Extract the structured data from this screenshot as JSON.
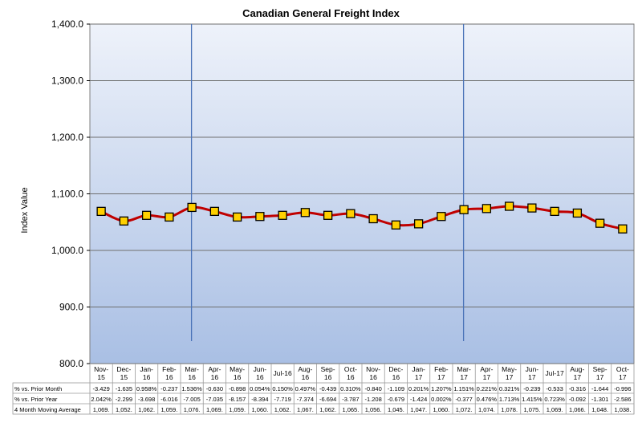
{
  "chart_data": {
    "type": "line",
    "title": "Canadian General Freight Index",
    "ylabel": "Index Value",
    "ylim": [
      800,
      1400
    ],
    "yticks": [
      "800.0",
      "900.0",
      "1,000.0",
      "1,100.0",
      "1,200.0",
      "1,300.0",
      "1,400.0"
    ],
    "ytick_values": [
      800,
      900,
      1000,
      1100,
      1200,
      1300,
      1400
    ],
    "categories": [
      [
        "Nov-",
        "15"
      ],
      [
        "Dec-",
        "15"
      ],
      [
        "Jan-",
        "16"
      ],
      [
        "Feb-",
        "16"
      ],
      [
        "Mar-",
        "16"
      ],
      [
        "Apr-",
        "16"
      ],
      [
        "May-",
        "16"
      ],
      [
        "Jun-",
        "16"
      ],
      [
        "Jul-16"
      ],
      [
        "Aug-",
        "16"
      ],
      [
        "Sep-",
        "16"
      ],
      [
        "Oct-",
        "16"
      ],
      [
        "Nov-",
        "16"
      ],
      [
        "Dec-",
        "16"
      ],
      [
        "Jan-",
        "17"
      ],
      [
        "Feb-",
        "17"
      ],
      [
        "Mar-",
        "17"
      ],
      [
        "Apr-",
        "17"
      ],
      [
        "May-",
        "17"
      ],
      [
        "Jun-",
        "17"
      ],
      [
        "Jul-17"
      ],
      [
        "Aug-",
        "17"
      ],
      [
        "Sep-",
        "17"
      ],
      [
        "Oct-",
        "17"
      ]
    ],
    "values": [
      1069,
      1052,
      1062,
      1059,
      1076,
      1069,
      1059,
      1060,
      1062,
      1067,
      1062,
      1065,
      1056,
      1045,
      1047,
      1060,
      1072,
      1074,
      1078,
      1075,
      1069,
      1066,
      1048,
      1038
    ],
    "vertical_markers": [
      "Mar-16",
      "Mar-17"
    ],
    "grid": true,
    "line_color": "#c00000",
    "marker_fill": "#ffd000",
    "marker_stroke": "#000000",
    "plot_bg_top": "#eef2fa",
    "plot_bg_bottom": "#a9bfe4",
    "marker_line_color": "#4a73b8",
    "table": {
      "rows": [
        {
          "label": "% vs. Prior Month",
          "cells": [
            "-3.429",
            "-1.635",
            "0.958%",
            "-0.237",
            "1.536%",
            "-0.630",
            "-0.898",
            "0.054%",
            "0.150%",
            "0.497%",
            "-0.439",
            "0.310%",
            "-0.840",
            "-1.109",
            "0.201%",
            "1.207%",
            "1.151%",
            "0.221%",
            "0.321%",
            "-0.239",
            "-0.533",
            "-0.316",
            "-1.644",
            "-0.996"
          ]
        },
        {
          "label": "% vs. Prior Year",
          "cells": [
            "2.042%",
            "-2.299",
            "-3.698",
            "-6.016",
            "-7.005",
            "-7.035",
            "-8.157",
            "-8.394",
            "-7.719",
            "-7.374",
            "-6.694",
            "-3.787",
            "-1.208",
            "-0.679",
            "-1.424",
            "0.002%",
            "-0.377",
            "0.476%",
            "1.713%",
            "1.415%",
            "0.723%",
            "-0.092",
            "-1.301",
            "-2.586"
          ]
        },
        {
          "label": "4 Month Moving Average",
          "cells": [
            "1,069.",
            "1,052.",
            "1,062.",
            "1,059.",
            "1,076.",
            "1,069.",
            "1,059.",
            "1,060.",
            "1,062.",
            "1,067.",
            "1,062.",
            "1,065.",
            "1,056.",
            "1,045.",
            "1,047.",
            "1,060.",
            "1,072.",
            "1,074.",
            "1,078.",
            "1,075.",
            "1,069.",
            "1,066.",
            "1,048.",
            "1,038."
          ]
        }
      ]
    }
  }
}
